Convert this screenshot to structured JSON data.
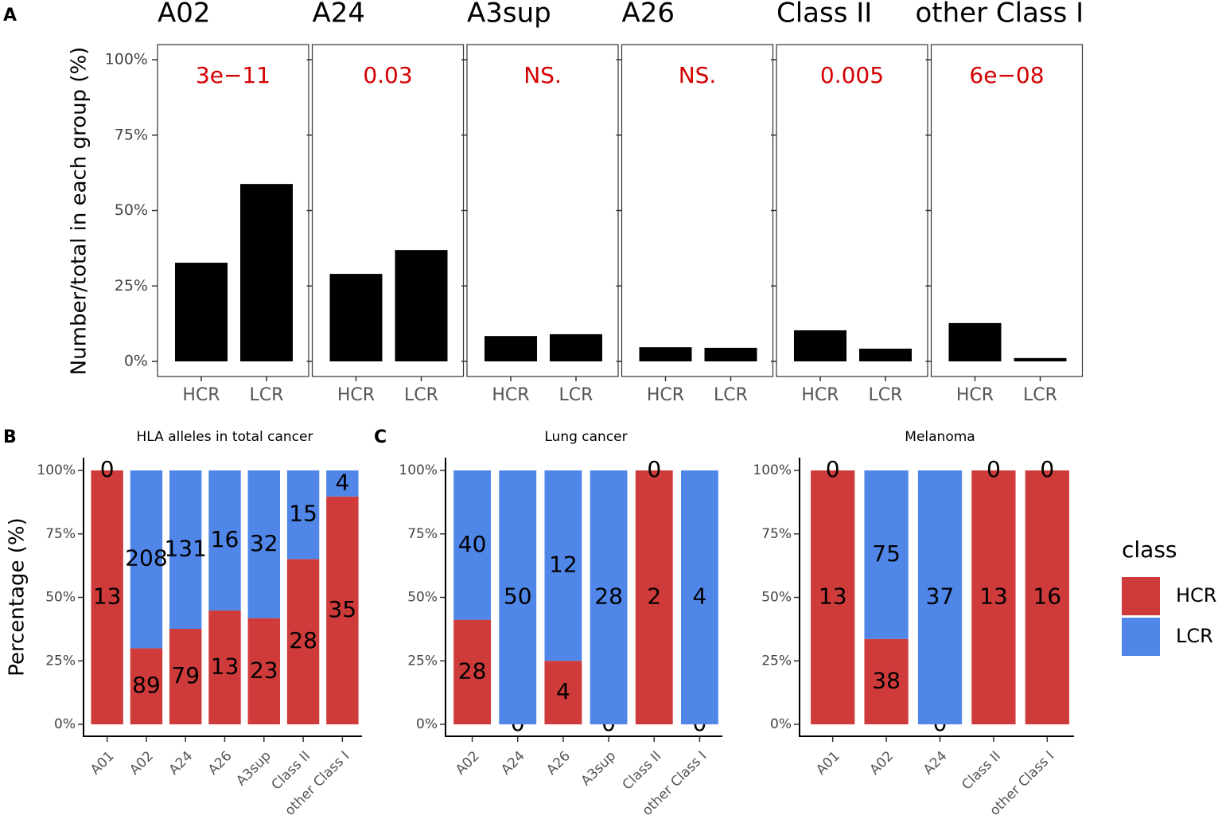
{
  "chart_data": [
    {
      "type": "facet-bar",
      "panel": "A",
      "ylabel": "Number/total in each group (%)",
      "color": "#000000",
      "annotation_color": "#d40000",
      "ylim": [
        0,
        100
      ],
      "yticks": [
        {
          "value": 0,
          "label": "0%"
        },
        {
          "value": 25,
          "label": "25%"
        },
        {
          "value": 50,
          "label": "50%"
        },
        {
          "value": 75,
          "label": "75%"
        },
        {
          "value": 100,
          "label": "100%"
        }
      ],
      "facets": [
        {
          "title": "A02",
          "annotation": "3e−11",
          "categories": [
            "HCR",
            "LCR"
          ],
          "values": [
            32.7,
            58.8
          ]
        },
        {
          "title": "A24",
          "annotation": "0.03",
          "categories": [
            "HCR",
            "LCR"
          ],
          "values": [
            29.0,
            36.9
          ]
        },
        {
          "title": "A3sup",
          "annotation": "NS.",
          "categories": [
            "HCR",
            "LCR"
          ],
          "values": [
            8.4,
            9.0
          ]
        },
        {
          "title": "A26",
          "annotation": "NS.",
          "categories": [
            "HCR",
            "LCR"
          ],
          "values": [
            4.7,
            4.5
          ]
        },
        {
          "title": "Class II",
          "annotation": "0.005",
          "categories": [
            "HCR",
            "LCR"
          ],
          "values": [
            10.3,
            4.2
          ]
        },
        {
          "title": "other Class I",
          "annotation": "6e−08",
          "categories": [
            "HCR",
            "LCR"
          ],
          "values": [
            12.7,
            1.1
          ]
        }
      ]
    },
    {
      "type": "stacked-percent",
      "panel": "B",
      "title": "HLA alleles in total cancer",
      "ylabel": "Percentage (%)",
      "categories": [
        "A01",
        "A02",
        "A24",
        "A26",
        "A3sup",
        "Class II",
        "other Class I"
      ],
      "series": [
        {
          "name": "HCR",
          "color": "#cf3b3b",
          "values": [
            13,
            89,
            79,
            13,
            23,
            28,
            35
          ]
        },
        {
          "name": "LCR",
          "color": "#4f86e8",
          "values": [
            0,
            208,
            131,
            16,
            32,
            15,
            4
          ]
        }
      ],
      "ylim": [
        0,
        100
      ],
      "yticks": [
        {
          "value": 0,
          "label": "0%"
        },
        {
          "value": 25,
          "label": "25%"
        },
        {
          "value": 50,
          "label": "50%"
        },
        {
          "value": 75,
          "label": "75%"
        },
        {
          "value": 100,
          "label": "100%"
        }
      ]
    },
    {
      "type": "stacked-percent",
      "panel": "C",
      "title": "Lung cancer",
      "categories": [
        "A02",
        "A24",
        "A26",
        "A3sup",
        "Class II",
        "other Class I"
      ],
      "series": [
        {
          "name": "HCR",
          "color": "#cf3b3b",
          "values": [
            28,
            0,
            4,
            0,
            2,
            0
          ]
        },
        {
          "name": "LCR",
          "color": "#4f86e8",
          "values": [
            40,
            50,
            12,
            28,
            0,
            4
          ]
        }
      ],
      "ylim": [
        0,
        100
      ],
      "yticks": [
        {
          "value": 0,
          "label": "0%"
        },
        {
          "value": 25,
          "label": "25%"
        },
        {
          "value": 50,
          "label": "50%"
        },
        {
          "value": 75,
          "label": "75%"
        },
        {
          "value": 100,
          "label": "100%"
        }
      ]
    },
    {
      "type": "stacked-percent",
      "title": "Melanoma",
      "legend": "right",
      "legend_title": "class",
      "categories": [
        "A01",
        "A02",
        "A24",
        "Class II",
        "other Class I"
      ],
      "series": [
        {
          "name": "HCR",
          "color": "#cf3b3b",
          "values": [
            13,
            38,
            0,
            13,
            16
          ]
        },
        {
          "name": "LCR",
          "color": "#4f86e8",
          "values": [
            0,
            75,
            37,
            0,
            0
          ]
        }
      ],
      "ylim": [
        0,
        100
      ],
      "yticks": [
        {
          "value": 0,
          "label": "0%"
        },
        {
          "value": 25,
          "label": "25%"
        },
        {
          "value": 50,
          "label": "50%"
        },
        {
          "value": 75,
          "label": "75%"
        },
        {
          "value": 100,
          "label": "100%"
        }
      ]
    }
  ]
}
